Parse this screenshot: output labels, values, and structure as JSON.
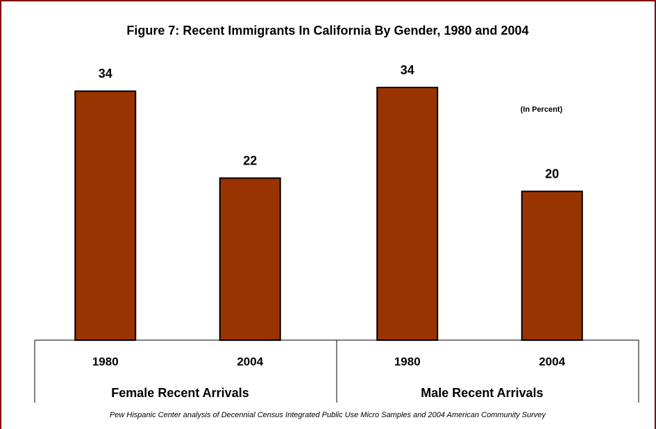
{
  "chart_data": {
    "type": "bar",
    "title": "Figure 7: Recent Immigrants In California By Gender, 1980 and 2004",
    "note": "(In Percent)",
    "categories": [
      "1980",
      "2004",
      "1980",
      "2004"
    ],
    "groups": [
      "Female Recent Arrivals",
      "Male Recent Arrivals"
    ],
    "values": [
      33.8,
      22,
      34.3,
      20.2
    ],
    "value_labels": [
      "34",
      "22",
      "34",
      "20"
    ],
    "color": "#993300",
    "source": "Pew Hispanic Center analysis of Decennial Census Integrated Public Use Micro Samples and 2004 American Community Survey"
  }
}
